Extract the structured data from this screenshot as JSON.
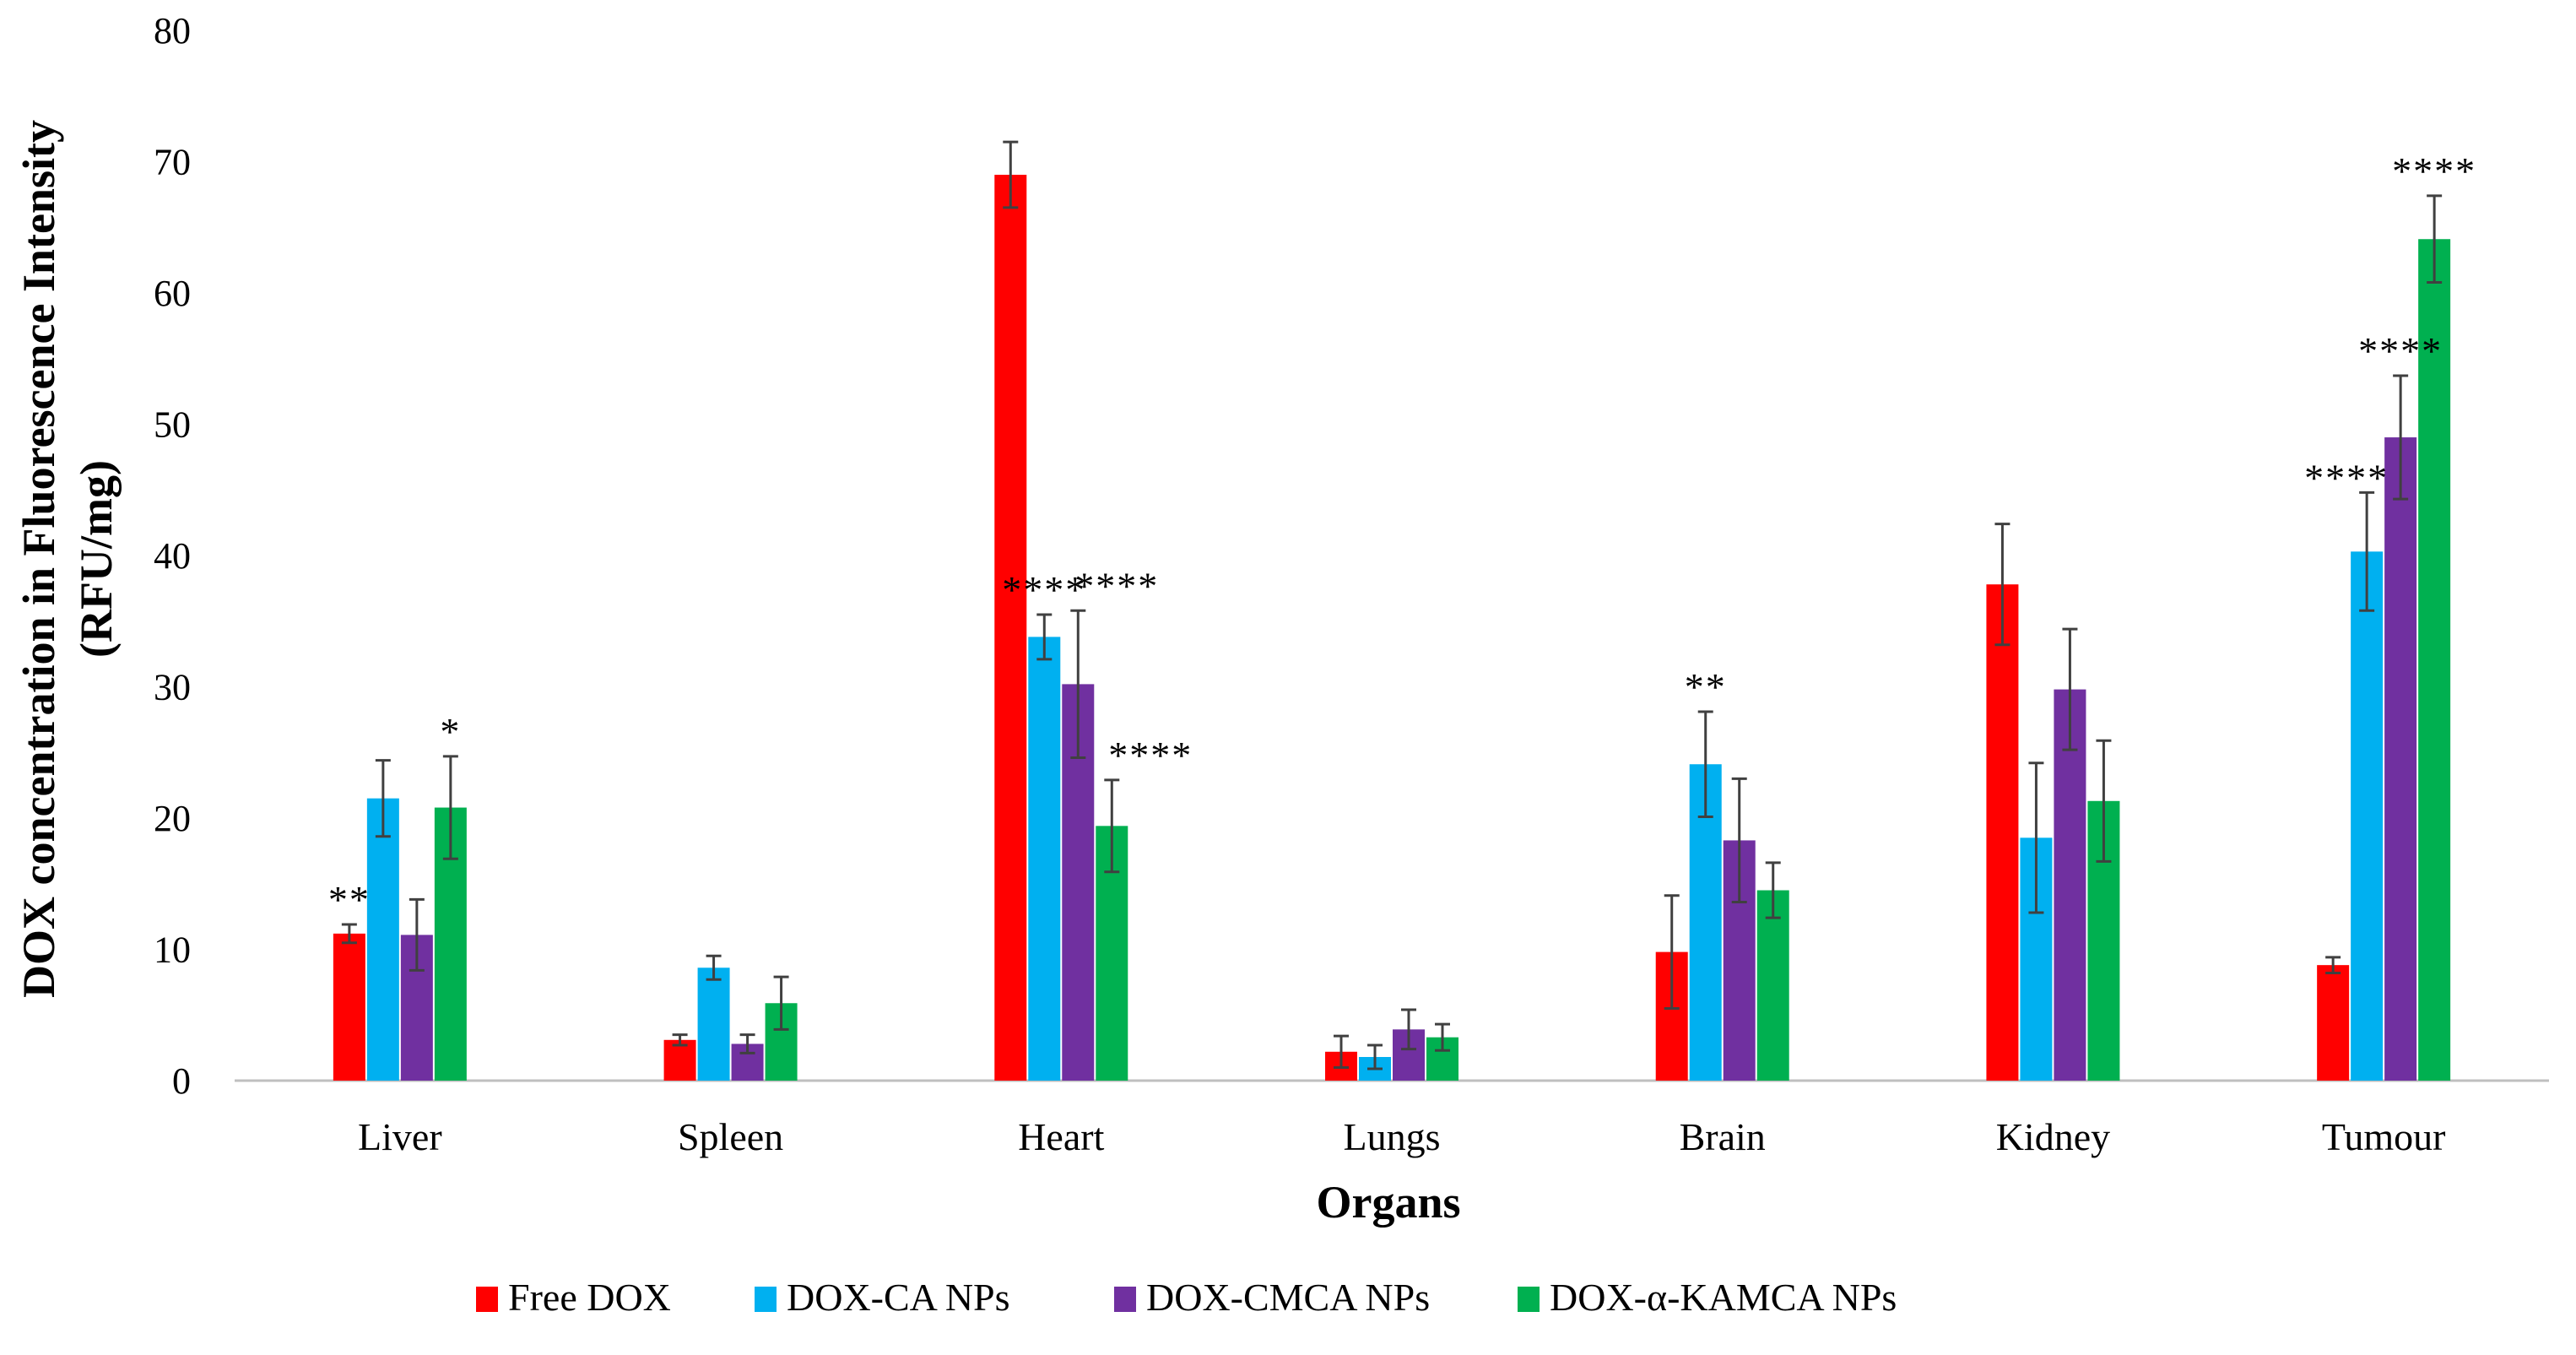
{
  "chart_data": {
    "type": "bar",
    "title": "",
    "xlabel": "Organs",
    "ylabel_line1": "DOX concentration in Fluorescence Intensity",
    "ylabel_line2": "(RFU/mg)",
    "ylim": [
      0,
      80
    ],
    "yticks": [
      0,
      10,
      20,
      30,
      40,
      50,
      60,
      70,
      80
    ],
    "grid": false,
    "legend_position": "bottom",
    "categories": [
      "Liver",
      "Spleen",
      "Heart",
      "Lungs",
      "Brain",
      "Kidney",
      "Tumour"
    ],
    "series": [
      {
        "name": "Free DOX",
        "color": "#ff0000",
        "values": [
          11.2,
          3.1,
          69.0,
          2.2,
          9.8,
          37.8,
          8.8
        ],
        "errors": [
          0.7,
          0.4,
          2.5,
          1.2,
          4.3,
          4.6,
          0.6
        ],
        "sig": [
          "**",
          "",
          "",
          "",
          "",
          "",
          ""
        ]
      },
      {
        "name": "DOX-CA NPs",
        "color": "#00b0f0",
        "values": [
          21.5,
          8.6,
          33.8,
          1.8,
          24.1,
          18.5,
          40.3
        ],
        "errors": [
          2.9,
          0.9,
          1.7,
          0.9,
          4.0,
          5.7,
          4.5
        ],
        "sig": [
          "",
          "",
          "****",
          "",
          "**",
          "",
          "****"
        ]
      },
      {
        "name": "DOX-CMCA NPs",
        "color": "#7030a0",
        "values": [
          11.1,
          2.8,
          30.2,
          3.9,
          18.3,
          29.8,
          49.0
        ],
        "errors": [
          2.7,
          0.7,
          5.6,
          1.5,
          4.7,
          4.6,
          4.7
        ],
        "sig": [
          "",
          "",
          "****",
          "",
          "",
          "",
          "****"
        ]
      },
      {
        "name": "DOX-α-KAMCA NPs",
        "color": "#00b050",
        "values": [
          20.8,
          5.9,
          19.4,
          3.3,
          14.5,
          21.3,
          64.1
        ],
        "errors": [
          3.9,
          2.0,
          3.5,
          1.0,
          2.1,
          4.6,
          3.3
        ],
        "sig": [
          "*",
          "",
          "****",
          "",
          "",
          "",
          "****"
        ]
      }
    ]
  }
}
